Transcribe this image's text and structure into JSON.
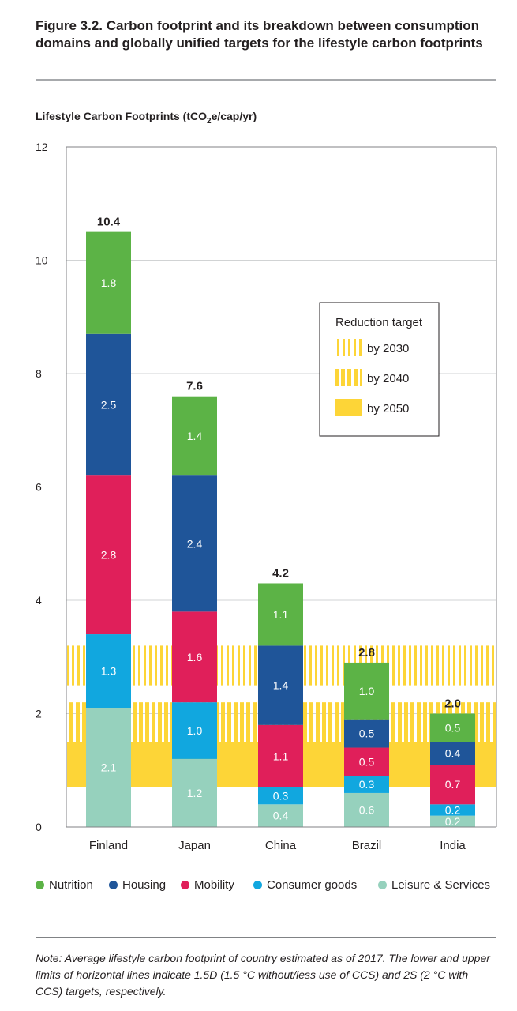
{
  "figure": {
    "title": "Figure 3.2. Carbon footprint and its breakdown between consumption domains and globally unified targets for the lifestyle carbon footprints",
    "note": "Note: Average lifestyle carbon footprint of country estimated as of 2017. The lower and upper limits of horizontal lines indicate 1.5D (1.5 °C without/less use of CCS) and 2S (2 °C with CCS) targets, respectively."
  },
  "colors": {
    "nutrition": "#5cb346",
    "housing": "#1f5599",
    "mobility": "#e01f5a",
    "consumer": "#11a7df",
    "leisure": "#96d1bd",
    "target": "#fdd537",
    "axis": "#808285",
    "grid": "#d1d3d4"
  },
  "chart_data": {
    "type": "bar",
    "stacked": true,
    "ylabel_prefix": "Lifestyle Carbon Footprints (tCO",
    "ylabel_sub": "2",
    "ylabel_suffix": "e/cap/yr)",
    "ylim": [
      0,
      12
    ],
    "yticks": [
      "0",
      "2",
      "4",
      "6",
      "8",
      "10",
      "12"
    ],
    "categories": [
      "Finland",
      "Japan",
      "China",
      "Brazil",
      "India"
    ],
    "totals": [
      "10.4",
      "7.6",
      "4.2",
      "2.8",
      "2.0"
    ],
    "series": [
      {
        "name": "Leisure & Services",
        "key": "leisure",
        "values": [
          2.1,
          1.2,
          0.4,
          0.6,
          0.2
        ],
        "labels": [
          "2.1",
          "1.2",
          "0.4",
          "0.6",
          "0.2"
        ]
      },
      {
        "name": "Consumer goods",
        "key": "consumer",
        "values": [
          1.3,
          1.0,
          0.3,
          0.3,
          0.2
        ],
        "labels": [
          "1.3",
          "1.0",
          "0.3",
          "0.3",
          "0.2"
        ]
      },
      {
        "name": "Mobility",
        "key": "mobility",
        "values": [
          2.8,
          1.6,
          1.1,
          0.5,
          0.7
        ],
        "labels": [
          "2.8",
          "1.6",
          "1.1",
          "0.5",
          "0.7"
        ]
      },
      {
        "name": "Housing",
        "key": "housing",
        "values": [
          2.5,
          2.4,
          1.4,
          0.5,
          0.4
        ],
        "labels": [
          "2.5",
          "2.4",
          "1.4",
          "0.5",
          "0.4"
        ]
      },
      {
        "name": "Nutrition",
        "key": "nutrition",
        "values": [
          1.8,
          1.4,
          1.1,
          1.0,
          0.5
        ],
        "labels": [
          "1.8",
          "1.4",
          "1.1",
          "1.0",
          "0.5"
        ]
      }
    ],
    "legend_order": [
      "Nutrition",
      "Housing",
      "Mobility",
      "Consumer goods",
      "Leisure & Services"
    ],
    "targets": [
      {
        "label": "by 2030",
        "pattern": "thin",
        "low": 2.5,
        "high": 3.2
      },
      {
        "label": "by 2040",
        "pattern": "thick",
        "low": 1.4,
        "high": 2.2
      },
      {
        "label": "by 2050",
        "pattern": "solid",
        "low": 0.7,
        "high": 1.5
      }
    ],
    "target_legend_title": "Reduction target"
  }
}
